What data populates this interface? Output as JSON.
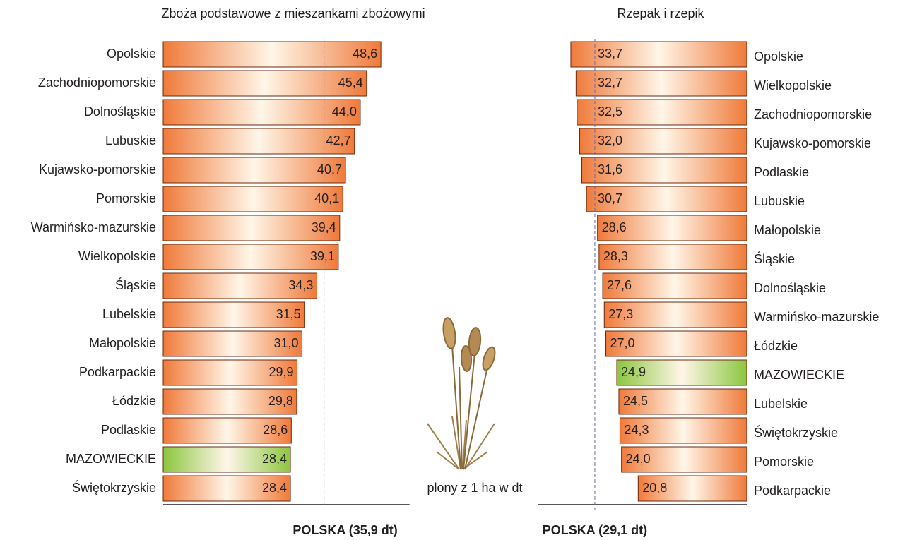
{
  "chart_data": [
    {
      "type": "barh",
      "title": "Zboża podstawowe  z mieszankami zbożowymi",
      "categories": [
        "Opolskie",
        "Zachodniopomorskie",
        "Dolnośląskie",
        "Lubuskie",
        "Kujawsko-pomorskie",
        "Pomorskie",
        "Warmińsko-mazurskie",
        "Wielkopolskie",
        "Śląskie",
        "Lubelskie",
        "Małopolskie",
        "Podkarpackie",
        "Łódzkie",
        "Podlaskie",
        "MAZOWIECKIE",
        "Świętokrzyskie"
      ],
      "values": [
        48.6,
        45.4,
        44.0,
        42.7,
        40.7,
        40.1,
        39.4,
        39.1,
        34.3,
        31.5,
        31.0,
        29.9,
        29.8,
        28.6,
        28.4,
        28.4
      ],
      "value_labels": [
        "48,6",
        "45,4",
        "44,0",
        "42,7",
        "40,7",
        "40,1",
        "39,4",
        "39,1",
        "34,3",
        "31,5",
        "31,0",
        "29,9",
        "29,8",
        "28,6",
        "28,4",
        "28,4"
      ],
      "colors": [
        "#ef7a3a",
        "#ef7a3a",
        "#ef7a3a",
        "#ef7a3a",
        "#ef7a3a",
        "#ef7a3a",
        "#ef7a3a",
        "#ef7a3a",
        "#ef7a3a",
        "#ef7a3a",
        "#ef7a3a",
        "#ef7a3a",
        "#ef7a3a",
        "#ef7a3a",
        "#8cc63f",
        "#ef7a3a"
      ],
      "xlim": [
        0,
        55
      ],
      "reference": {
        "value": 35.9,
        "label": "POLSKA (35,9 dt)"
      },
      "note": "plony z 1 ha w dt"
    },
    {
      "type": "barh",
      "title": "Rzepak i rzepik",
      "reversed": true,
      "categories": [
        "Opolskie",
        "Wielkopolskie",
        "Zachodniopomorskie",
        "Kujawsko-pomorskie",
        "Podlaskie",
        "Lubuskie",
        "Małopolskie",
        "Śląskie",
        "Dolnośląskie",
        "Warmińsko-mazurskie",
        "Łódzkie",
        "MAZOWIECKIE",
        "Lubelskie",
        "Świętokrzyskie",
        "Pomorskie",
        "Podkarpackie"
      ],
      "values": [
        33.7,
        32.7,
        32.5,
        32.0,
        31.6,
        30.7,
        28.6,
        28.3,
        27.6,
        27.3,
        27.0,
        24.9,
        24.5,
        24.3,
        24.0,
        20.8
      ],
      "value_labels": [
        "33,7",
        "32,7",
        "32,5",
        "32,0",
        "31,6",
        "30,7",
        "28,6",
        "28,3",
        "27,6",
        "27,3",
        "27,0",
        "24,9",
        "24,5",
        "24,3",
        "24,0",
        "20,8"
      ],
      "colors": [
        "#ef7a3a",
        "#ef7a3a",
        "#ef7a3a",
        "#ef7a3a",
        "#ef7a3a",
        "#ef7a3a",
        "#ef7a3a",
        "#ef7a3a",
        "#ef7a3a",
        "#ef7a3a",
        "#ef7a3a",
        "#8cc63f",
        "#ef7a3a",
        "#ef7a3a",
        "#ef7a3a",
        "#ef7a3a"
      ],
      "xlim": [
        0,
        40
      ],
      "reference": {
        "value": 29.1,
        "label": "POLSKA (29,1 dt)"
      }
    }
  ]
}
